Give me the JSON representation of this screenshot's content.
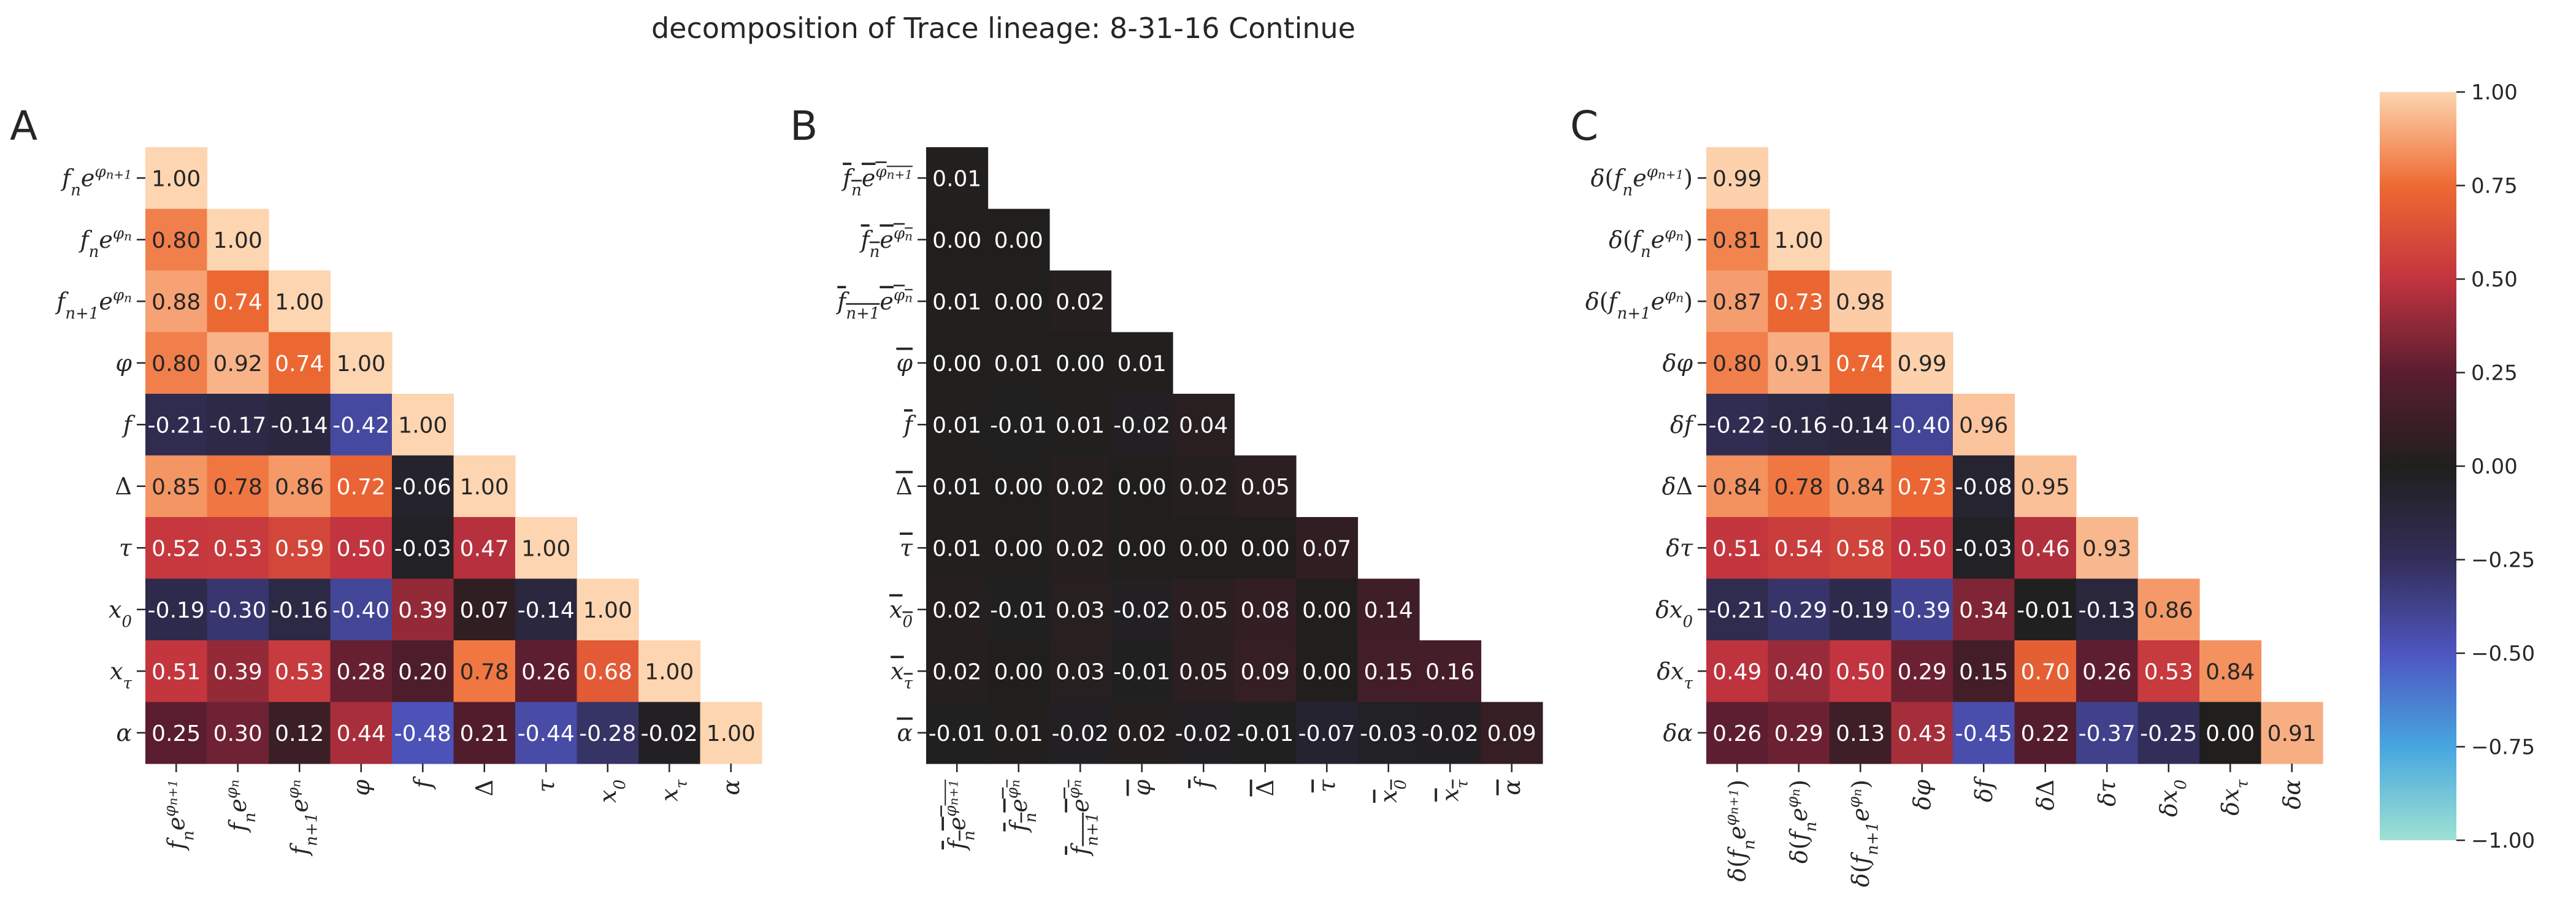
{
  "figure": {
    "title": "decomposition of Trace lineage: 8-31-16 Continue"
  },
  "chart_data": [
    {
      "type": "heatmap",
      "panel": "A",
      "labels": [
        "f_n e^{φ_{n+1}}",
        "f_n e^{φ_n}",
        "f_{n+1} e^{φ_n}",
        "φ",
        "f",
        "Δ",
        "τ",
        "x_0",
        "x_τ",
        "α"
      ],
      "rows": [
        [
          1.0
        ],
        [
          0.8,
          1.0
        ],
        [
          0.88,
          0.74,
          1.0
        ],
        [
          0.8,
          0.92,
          0.74,
          1.0
        ],
        [
          -0.21,
          -0.17,
          -0.14,
          -0.42,
          1.0
        ],
        [
          0.85,
          0.78,
          0.86,
          0.72,
          -0.06,
          1.0
        ],
        [
          0.52,
          0.53,
          0.59,
          0.5,
          -0.03,
          0.47,
          1.0
        ],
        [
          -0.19,
          -0.3,
          -0.16,
          -0.4,
          0.39,
          0.07,
          -0.14,
          1.0
        ],
        [
          0.51,
          0.39,
          0.53,
          0.28,
          0.2,
          0.78,
          0.26,
          0.68,
          1.0
        ],
        [
          0.25,
          0.3,
          0.12,
          0.44,
          -0.48,
          0.21,
          -0.44,
          -0.28,
          -0.02,
          1.0
        ]
      ]
    },
    {
      "type": "heatmap",
      "panel": "B",
      "labels": [
        "f_n e^{φ_{n+1}} (bar)",
        "f_n e^{φ_n} (bar)",
        "f_{n+1} e^{φ_n} (bar)",
        "φ̄",
        "f̄",
        "Δ̄",
        "τ̄",
        "x̄_0",
        "x̄_τ",
        "ᾱ"
      ],
      "rows": [
        [
          0.01
        ],
        [
          -0.0,
          0.0
        ],
        [
          0.01,
          -0.0,
          0.02
        ],
        [
          -0.0,
          0.01,
          -0.0,
          0.01
        ],
        [
          0.01,
          -0.01,
          0.01,
          -0.02,
          0.04
        ],
        [
          0.01,
          -0.0,
          0.02,
          -0.0,
          0.02,
          0.05
        ],
        [
          0.01,
          -0.0,
          0.02,
          0.0,
          0.0,
          0.0,
          0.07
        ],
        [
          0.02,
          -0.01,
          0.03,
          -0.02,
          0.05,
          0.08,
          -0.0,
          0.14
        ],
        [
          0.02,
          -0.0,
          0.03,
          -0.01,
          0.05,
          0.09,
          -0.0,
          0.15,
          0.16
        ],
        [
          -0.01,
          0.01,
          -0.02,
          0.02,
          -0.02,
          -0.01,
          -0.07,
          -0.03,
          -0.02,
          0.09
        ]
      ]
    },
    {
      "type": "heatmap",
      "panel": "C",
      "labels": [
        "δ(f_n e^{φ_{n+1}})",
        "δ(f_n e^{φ_n})",
        "δ(f_{n+1} e^{φ_n})",
        "δφ",
        "δf",
        "δΔ",
        "δτ",
        "δx_0",
        "δx_τ",
        "δα"
      ],
      "rows": [
        [
          0.99
        ],
        [
          0.81,
          1.0
        ],
        [
          0.87,
          0.73,
          0.98
        ],
        [
          0.8,
          0.91,
          0.74,
          0.99
        ],
        [
          -0.22,
          -0.16,
          -0.14,
          -0.4,
          0.96
        ],
        [
          0.84,
          0.78,
          0.84,
          0.73,
          -0.08,
          0.95
        ],
        [
          0.51,
          0.54,
          0.58,
          0.5,
          -0.03,
          0.46,
          0.93
        ],
        [
          -0.21,
          -0.29,
          -0.19,
          -0.39,
          0.34,
          -0.01,
          -0.13,
          0.86
        ],
        [
          0.49,
          0.4,
          0.5,
          0.29,
          0.15,
          0.7,
          0.26,
          0.53,
          0.84
        ],
        [
          0.26,
          0.29,
          0.13,
          0.43,
          -0.45,
          0.22,
          -0.37,
          -0.25,
          0.0,
          0.91
        ]
      ]
    }
  ],
  "colorbar": {
    "vmin": -1.0,
    "vmax": 1.0,
    "colormap": "icefire",
    "tick_values": [
      1.0,
      0.75,
      0.5,
      0.25,
      0.0,
      -0.25,
      -0.5,
      -0.75,
      -1.0
    ],
    "tick_labels": [
      "1.00",
      "0.75",
      "0.50",
      "0.25",
      "0.00",
      "−0.25",
      "−0.50",
      "−0.75",
      "−1.00"
    ]
  }
}
